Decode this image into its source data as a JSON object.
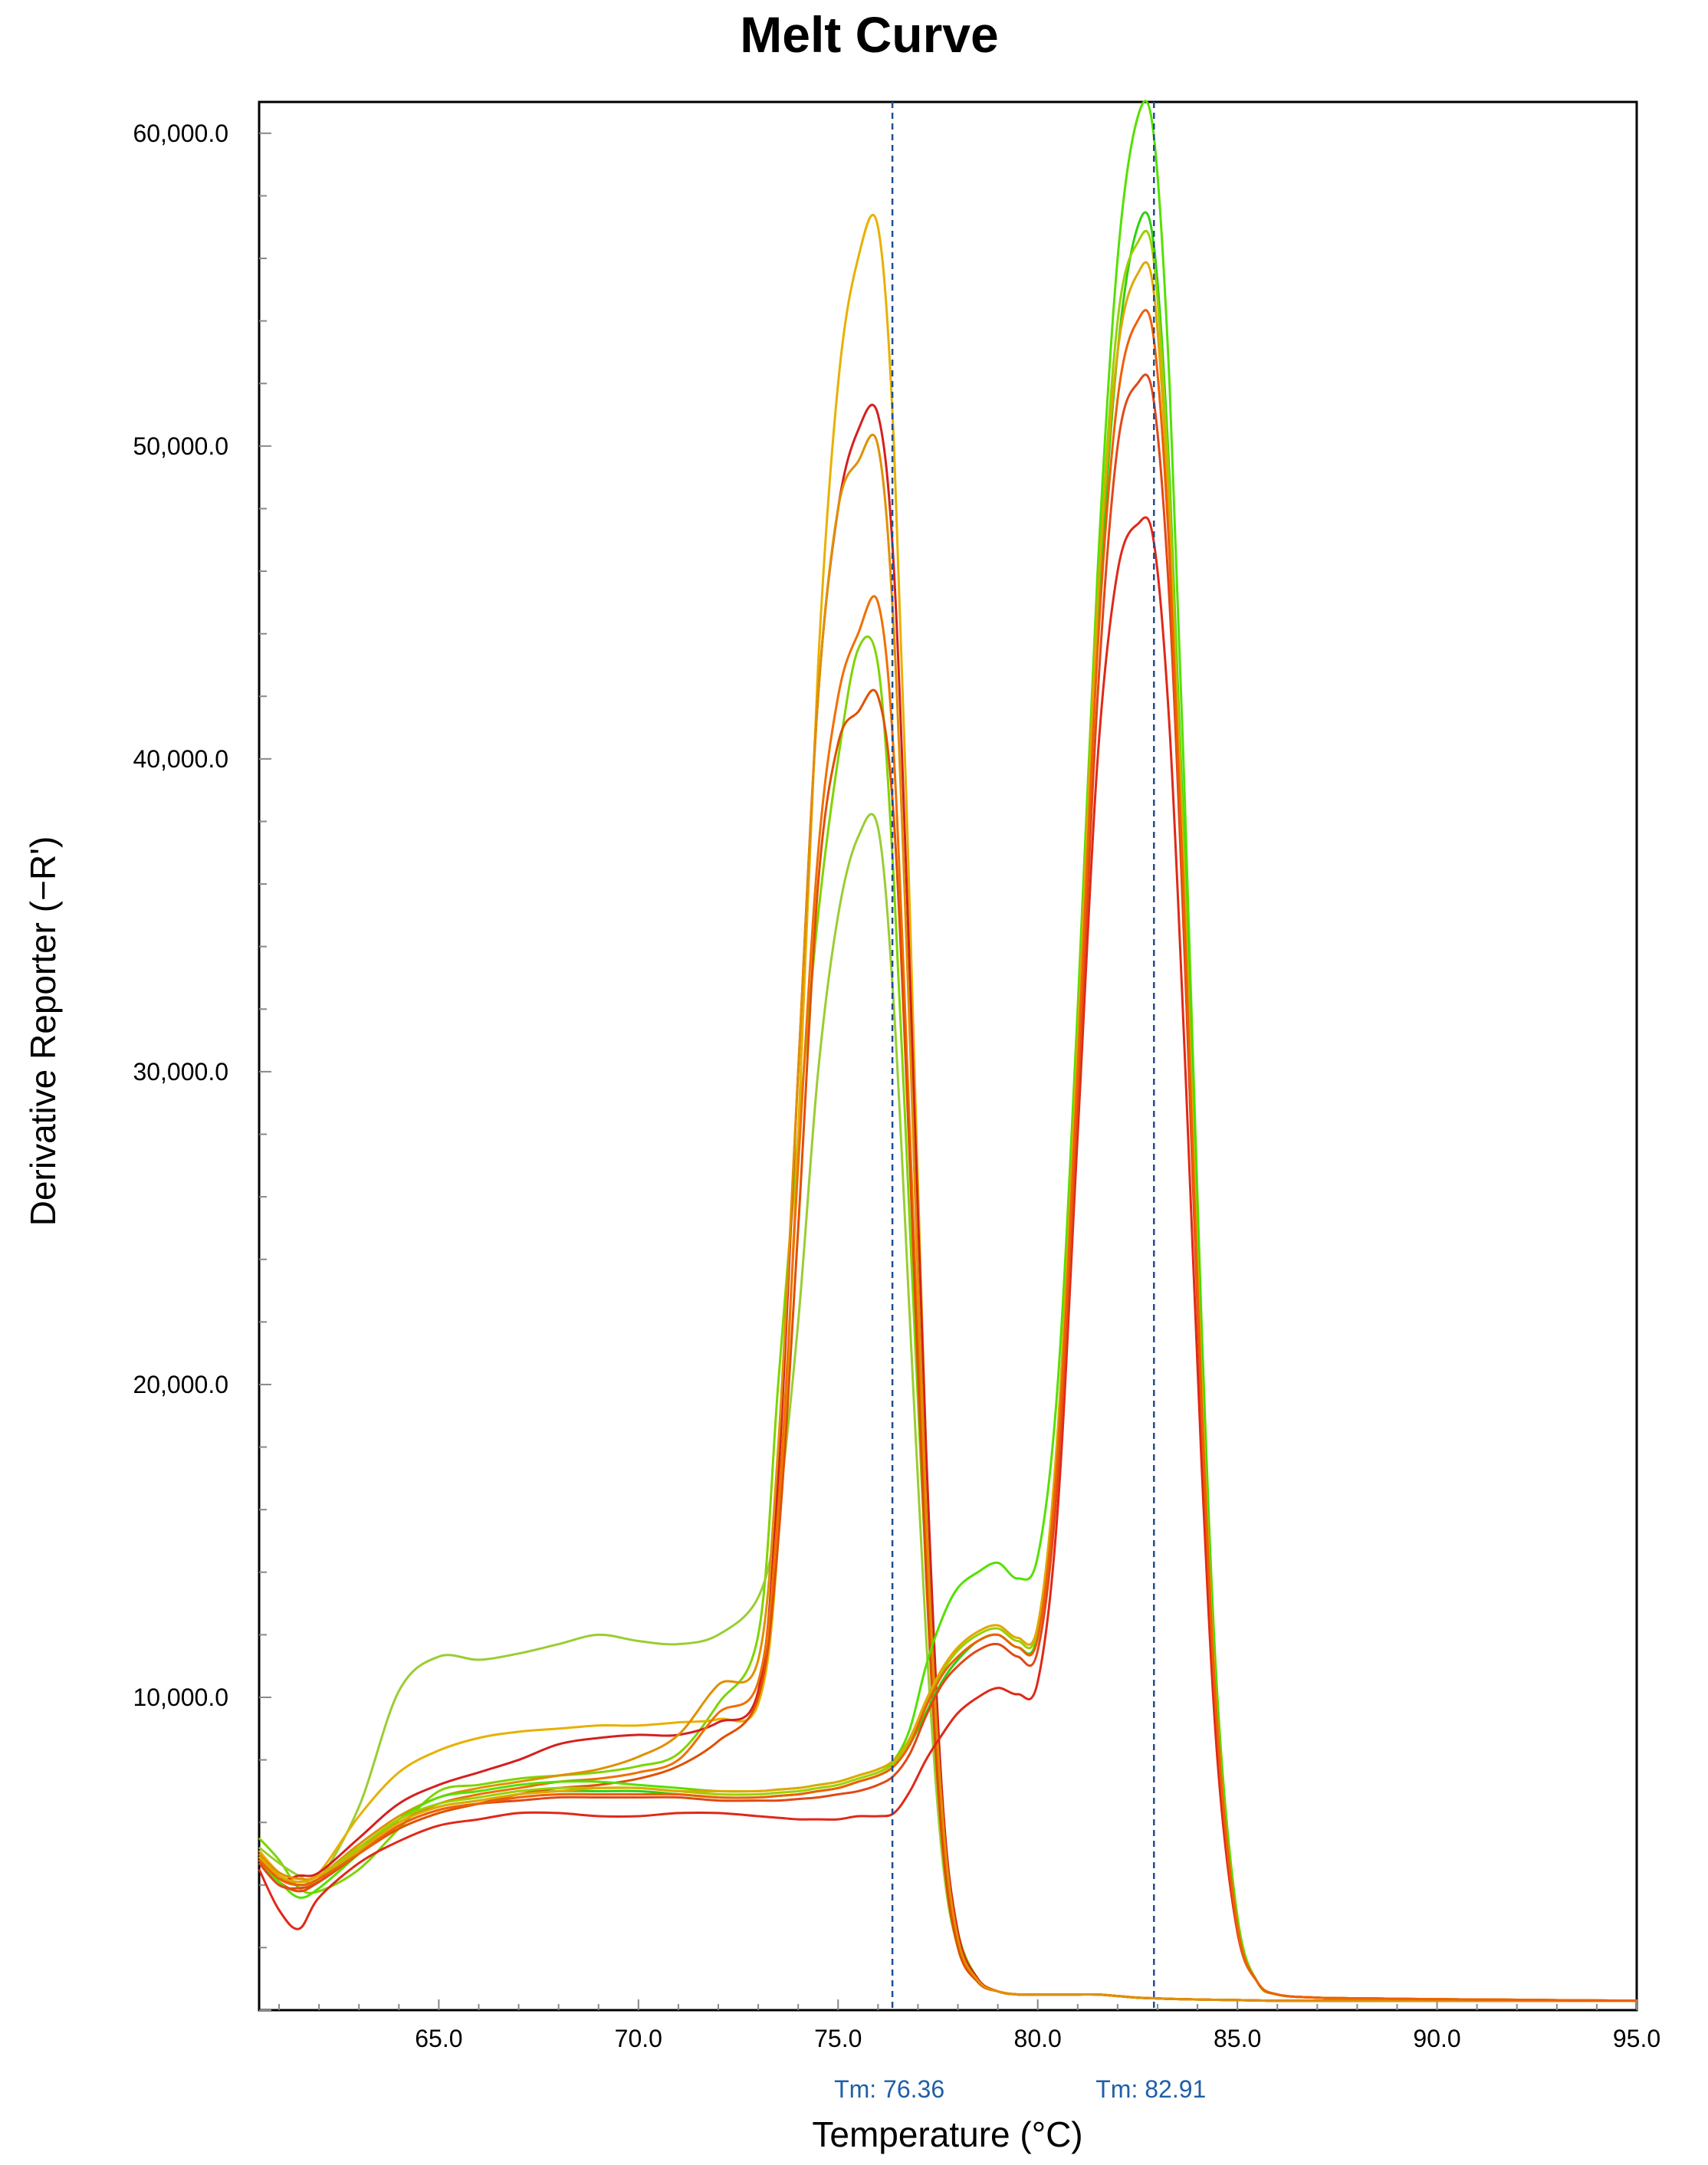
{
  "chart_data": {
    "type": "line",
    "title": "Melt Curve",
    "xlabel": "Temperature (°C)",
    "ylabel": "Derivative Reporter (−R')",
    "xlim": [
      60.5,
      95.0
    ],
    "ylim": [
      0,
      61000
    ],
    "x_ticks": [
      65.0,
      70.0,
      75.0,
      80.0,
      85.0,
      90.0,
      95.0
    ],
    "x_tick_labels": [
      "65.0",
      "70.0",
      "75.0",
      "80.0",
      "85.0",
      "90.0",
      "95.0"
    ],
    "y_ticks": [
      10000,
      20000,
      30000,
      40000,
      50000,
      60000
    ],
    "y_tick_labels": [
      "10,000.0",
      "20,000.0",
      "30,000.0",
      "40,000.0",
      "50,000.0",
      "60,000.0"
    ],
    "grid": false,
    "legend": "none",
    "annotations": [
      {
        "label": "Tm: 76.36",
        "x": 76.36
      },
      {
        "label": "Tm: 82.91",
        "x": 82.91
      }
    ],
    "x": [
      60.5,
      61.0,
      61.5,
      62.0,
      63.0,
      64.0,
      65.0,
      66.0,
      67.0,
      68.0,
      69.0,
      70.0,
      71.0,
      72.0,
      73.0,
      73.5,
      74.0,
      74.5,
      75.0,
      75.5,
      76.0,
      76.4,
      76.8,
      77.2,
      77.6,
      78.0,
      78.5,
      79.0,
      79.5,
      80.0,
      80.5,
      81.0,
      81.5,
      82.0,
      82.5,
      82.9,
      83.3,
      83.7,
      84.1,
      84.5,
      85.0,
      85.5,
      86.0,
      87.0,
      88.0,
      90.0,
      92.0,
      95.0
    ],
    "series": [
      {
        "color": "#7fd400",
        "values": [
          5500,
          4800,
          3900,
          3800,
          4500,
          5800,
          7000,
          7200,
          7400,
          7500,
          7600,
          7800,
          8200,
          9800,
          12000,
          20000,
          28000,
          35000,
          40000,
          43500,
          43000,
          36000,
          25000,
          14000,
          6000,
          2500,
          1000,
          600,
          500,
          500,
          500,
          500,
          500,
          450,
          400,
          380,
          360,
          350,
          340,
          330,
          320,
          310,
          300,
          300,
          300,
          300,
          300,
          300
        ]
      },
      {
        "color": "#9acd32",
        "values": [
          5200,
          4700,
          4300,
          4200,
          6500,
          10200,
          11300,
          11200,
          11400,
          11700,
          12000,
          11800,
          11700,
          12000,
          13200,
          16000,
          22000,
          30000,
          35000,
          37500,
          37800,
          32000,
          22000,
          12000,
          5000,
          2000,
          900,
          600,
          500,
          500,
          500,
          500,
          500,
          450,
          400,
          380,
          360,
          350,
          340,
          330,
          320,
          310,
          300,
          300,
          300,
          300,
          300,
          300
        ]
      },
      {
        "color": "#e8b000",
        "values": [
          5100,
          4400,
          4200,
          4400,
          6200,
          7600,
          8300,
          8700,
          8900,
          9000,
          9100,
          9100,
          9200,
          9300,
          9800,
          15000,
          28000,
          43000,
          52000,
          56000,
          57000,
          50000,
          35000,
          18000,
          7000,
          2500,
          1000,
          600,
          500,
          500,
          500,
          500,
          500,
          450,
          400,
          380,
          360,
          350,
          340,
          330,
          320,
          310,
          300,
          300,
          300,
          300,
          300,
          300
        ]
      },
      {
        "color": "#d42020",
        "values": [
          5000,
          4200,
          4300,
          4400,
          5500,
          6600,
          7200,
          7600,
          8000,
          8500,
          8700,
          8800,
          8800,
          9200,
          10200,
          17000,
          30000,
          42000,
          48000,
          50500,
          51000,
          46000,
          33000,
          18000,
          7000,
          2500,
          1000,
          600,
          500,
          500,
          500,
          500,
          500,
          450,
          400,
          380,
          360,
          350,
          340,
          330,
          320,
          310,
          300,
          300,
          300,
          300,
          300,
          300
        ]
      },
      {
        "color": "#f07000",
        "values": [
          4900,
          4300,
          4000,
          4200,
          5200,
          6000,
          6600,
          6900,
          7100,
          7300,
          7400,
          7600,
          8000,
          9500,
          10500,
          16000,
          27000,
          37000,
          42000,
          44000,
          45000,
          40000,
          28000,
          15000,
          6000,
          2200,
          900,
          600,
          500,
          500,
          500,
          500,
          500,
          450,
          400,
          380,
          360,
          350,
          340,
          330,
          320,
          310,
          300,
          300,
          300,
          300,
          300,
          300
        ]
      },
      {
        "color": "#e05000",
        "values": [
          4800,
          4100,
          3800,
          4100,
          5000,
          5800,
          6300,
          6600,
          6900,
          7100,
          7200,
          7400,
          7800,
          8600,
          10000,
          15000,
          25000,
          36000,
          40500,
          41500,
          42000,
          38000,
          27000,
          14000,
          5500,
          2000,
          900,
          600,
          500,
          500,
          500,
          500,
          500,
          450,
          400,
          380,
          360,
          350,
          340,
          330,
          320,
          310,
          300,
          300,
          300,
          300,
          300,
          300
        ]
      },
      {
        "color": "#e09000",
        "values": [
          5000,
          4400,
          4200,
          4300,
          5300,
          6200,
          6800,
          7100,
          7300,
          7500,
          7700,
          8100,
          8800,
          10400,
          11200,
          18000,
          30000,
          42000,
          48000,
          49500,
          50000,
          44000,
          31000,
          16000,
          6500,
          2300,
          950,
          600,
          500,
          500,
          500,
          500,
          500,
          450,
          400,
          380,
          360,
          350,
          340,
          330,
          320,
          310,
          300,
          300,
          300,
          300,
          300,
          300
        ]
      },
      {
        "color": "#55e000",
        "values": [
          4700,
          4100,
          3600,
          3900,
          5000,
          6100,
          6800,
          7000,
          7200,
          7300,
          7300,
          7200,
          7100,
          7000,
          7000,
          7050,
          7100,
          7200,
          7300,
          7500,
          7700,
          8000,
          9000,
          11000,
          12500,
          13500,
          14000,
          14300,
          13800,
          14500,
          20000,
          32000,
          46000,
          56000,
          60500,
          60000,
          52000,
          38000,
          22000,
          10000,
          3000,
          900,
          500,
          400,
          380,
          350,
          330,
          300
        ]
      },
      {
        "color": "#30d010",
        "values": [
          4800,
          4200,
          4000,
          4200,
          5100,
          6000,
          6500,
          6700,
          6900,
          7000,
          7000,
          7000,
          6900,
          6800,
          6800,
          6850,
          6900,
          7000,
          7100,
          7300,
          7500,
          7800,
          8500,
          9500,
          10500,
          11200,
          11800,
          12000,
          11600,
          12000,
          18000,
          30000,
          44000,
          53000,
          57000,
          56500,
          49000,
          36000,
          21000,
          9500,
          2800,
          900,
          500,
          400,
          380,
          350,
          330,
          300
        ]
      },
      {
        "color": "#9ad000",
        "values": [
          4900,
          4300,
          4100,
          4300,
          5200,
          6100,
          6600,
          6800,
          7000,
          7100,
          7100,
          7100,
          7000,
          6900,
          6900,
          6950,
          7000,
          7100,
          7200,
          7400,
          7600,
          7900,
          8600,
          9800,
          10800,
          11500,
          12000,
          12200,
          11800,
          12200,
          18500,
          31000,
          45000,
          54000,
          56500,
          56000,
          48500,
          35500,
          20500,
          9300,
          2800,
          900,
          500,
          400,
          380,
          350,
          330,
          300
        ]
      },
      {
        "color": "#e02818",
        "values": [
          4500,
          3200,
          2600,
          3600,
          4700,
          5400,
          5900,
          6100,
          6300,
          6300,
          6200,
          6200,
          6300,
          6300,
          6200,
          6150,
          6100,
          6100,
          6100,
          6200,
          6200,
          6300,
          7000,
          8000,
          8800,
          9500,
          10000,
          10300,
          10100,
          10500,
          16000,
          28000,
          40000,
          46000,
          47500,
          47000,
          41000,
          30000,
          17500,
          8000,
          2500,
          900,
          500,
          400,
          380,
          350,
          330,
          300
        ]
      },
      {
        "color": "#e04818",
        "values": [
          4700,
          4000,
          3900,
          4100,
          5000,
          5900,
          6400,
          6600,
          6700,
          6800,
          6800,
          6800,
          6800,
          6700,
          6700,
          6700,
          6750,
          6800,
          6900,
          7000,
          7200,
          7500,
          8200,
          9400,
          10400,
          11000,
          11500,
          11700,
          11300,
          11500,
          17000,
          29000,
          42000,
          50000,
          52000,
          51500,
          45000,
          33000,
          19000,
          8800,
          2600,
          900,
          500,
          400,
          380,
          350,
          330,
          300
        ]
      },
      {
        "color": "#e0a800",
        "values": [
          4900,
          4300,
          4100,
          4300,
          5100,
          6000,
          6500,
          6700,
          6900,
          7000,
          7100,
          7100,
          7000,
          7000,
          7000,
          7050,
          7100,
          7200,
          7300,
          7500,
          7700,
          8000,
          8700,
          9900,
          10900,
          11600,
          12100,
          12300,
          11900,
          12300,
          18500,
          31000,
          45000,
          53000,
          55500,
          55000,
          47500,
          35000,
          20000,
          9200,
          2700,
          900,
          500,
          400,
          380,
          350,
          330,
          300
        ]
      },
      {
        "color": "#f06000",
        "values": [
          4800,
          4200,
          4000,
          4200,
          5000,
          5900,
          6400,
          6600,
          6800,
          6900,
          6900,
          6900,
          6900,
          6800,
          6800,
          6850,
          6900,
          7000,
          7100,
          7300,
          7500,
          7800,
          8500,
          9700,
          10700,
          11300,
          11800,
          12000,
          11600,
          11900,
          17800,
          30000,
          43500,
          51500,
          54000,
          53500,
          46500,
          34000,
          19500,
          9000,
          2700,
          900,
          500,
          400,
          380,
          350,
          330,
          300
        ]
      }
    ]
  }
}
